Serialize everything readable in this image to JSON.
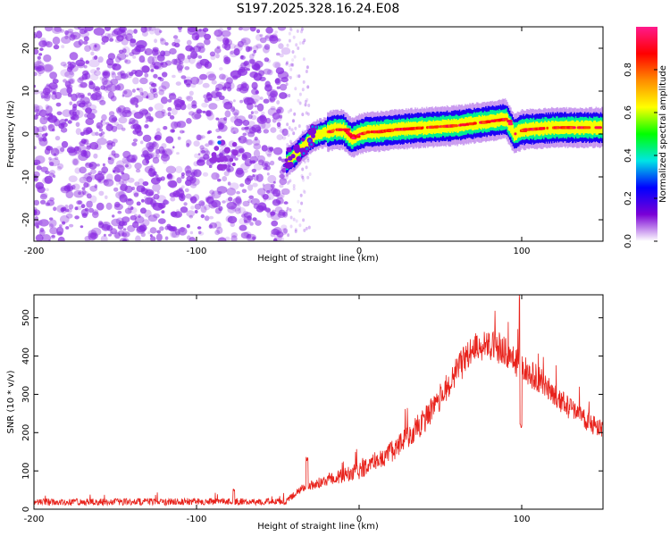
{
  "title": "S197.2025.328.16.24.E08",
  "colors": {
    "snr_line": "#e8221b",
    "noise_speckle": "#8a2be2",
    "signal_core": "#e0192c",
    "axes": "#000000",
    "background": "#ffffff"
  },
  "chart_data": [
    {
      "type": "heatmap",
      "name": "spectrogram",
      "xlabel": "Height of straight line (km)",
      "ylabel": "Frequency (Hz)",
      "xlim": [
        -200,
        150
      ],
      "ylim": [
        -25,
        25
      ],
      "xticks": [
        -200,
        -100,
        0,
        100
      ],
      "yticks": [
        20,
        10,
        0,
        -10,
        -20
      ],
      "noise_region_x": [
        -200,
        -45
      ],
      "signal_track": {
        "x": [
          -45,
          -40,
          -35,
          -30,
          -25,
          -20,
          -15,
          -10,
          -5,
          0,
          5,
          10,
          20,
          40,
          60,
          80,
          90,
          95,
          100,
          120,
          150
        ],
        "frequency": [
          -6.5,
          -5,
          -3,
          -1,
          0,
          0.5,
          1,
          1,
          -1,
          0,
          0.5,
          0.5,
          1,
          1.5,
          2,
          3,
          3.5,
          0,
          1,
          1.5,
          1.5
        ]
      },
      "colorbar": {
        "label": "Normalized spectral amplitude",
        "range": [
          0,
          1
        ],
        "ticks": [
          "0.0",
          "0.2",
          "0.4",
          "0.6",
          "0.8"
        ],
        "colormap": [
          "#ffffff",
          "#7a00d6",
          "#0000ff",
          "#00e5e5",
          "#00ff00",
          "#ffff00",
          "#ff8c00",
          "#ff0000",
          "#ff1a8c"
        ]
      }
    },
    {
      "type": "line",
      "name": "snr",
      "xlabel": "Height of straight line (km)",
      "ylabel": "SNR (10 * v/v)",
      "xlim": [
        -200,
        150
      ],
      "ylim": [
        0,
        560
      ],
      "xticks": [
        -200,
        -100,
        0,
        100
      ],
      "yticks": [
        0,
        100,
        200,
        300,
        400,
        500
      ],
      "envelope": {
        "x": [
          -200,
          -100,
          -45,
          -35,
          -20,
          0,
          20,
          40,
          60,
          70,
          80,
          90,
          100,
          110,
          120,
          130,
          140,
          150
        ],
        "y": [
          18,
          20,
          20,
          55,
          75,
          100,
          150,
          230,
          360,
          420,
          430,
          410,
          370,
          340,
          300,
          260,
          230,
          205
        ]
      },
      "noise_amplitude": {
        "x": [
          -200,
          -40,
          0,
          60,
          80,
          100,
          150
        ],
        "y": [
          9,
          9,
          22,
          40,
          40,
          38,
          24
        ]
      },
      "features": [
        {
          "x": -32,
          "y": 140
        },
        {
          "x": -77,
          "y": 57
        },
        {
          "x": 99,
          "y": 560
        },
        {
          "x": 99.5,
          "y": 225
        }
      ]
    }
  ]
}
